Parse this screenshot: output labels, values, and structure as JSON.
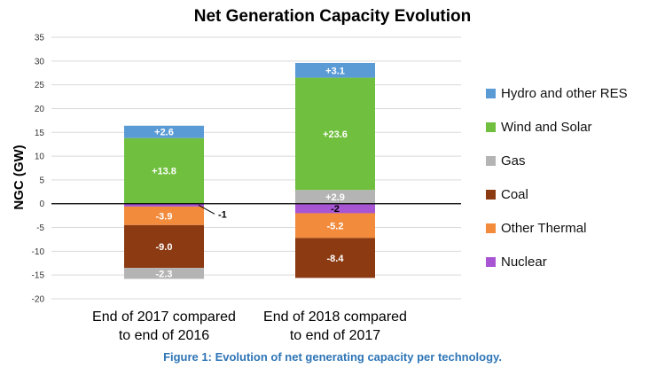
{
  "caption": "Figure 1: Evolution of net generating capacity per technology.",
  "chart_data": {
    "type": "bar",
    "stacked": true,
    "title": "Net Generation Capacity Evolution",
    "xlabel": "",
    "ylabel": "NGC (GW)",
    "ylim": [
      -20,
      35
    ],
    "yticks": [
      35,
      30,
      25,
      20,
      15,
      10,
      5,
      0,
      -5,
      -10,
      -15,
      -20
    ],
    "grid": true,
    "legend_position": "right",
    "categories": [
      [
        "End of 2017 compared",
        "to end of 2016"
      ],
      [
        "End of 2018 compared",
        "to end of 2017"
      ]
    ],
    "series": [
      {
        "name": "Hydro and other RES",
        "color": "#5b9bd5",
        "values": [
          2.6,
          3.1
        ],
        "labels": [
          "+2.6",
          "+3.1"
        ]
      },
      {
        "name": "Wind and Solar",
        "color": "#70bf3f",
        "values": [
          13.8,
          23.6
        ],
        "labels": [
          "+13.8",
          "+23.6"
        ]
      },
      {
        "name": "Gas",
        "color": "#b4b4b4",
        "values": [
          -2.3,
          2.9
        ],
        "labels": [
          "-2.3",
          "+2.9"
        ]
      },
      {
        "name": "Coal",
        "color": "#8b3a12",
        "values": [
          -9.0,
          -8.4
        ],
        "labels": [
          "-9.0",
          "-8.4"
        ]
      },
      {
        "name": "Other Thermal",
        "color": "#f28b3c",
        "values": [
          -3.9,
          -5.2
        ],
        "labels": [
          "-3.9",
          "-5.2"
        ]
      },
      {
        "name": "Nuclear",
        "color": "#a855d4",
        "values": [
          -0.6,
          -2.0
        ],
        "labels": [
          "-1",
          "-2"
        ]
      }
    ],
    "stack_order": [
      "Nuclear",
      "Other Thermal",
      "Coal",
      "Gas",
      "Wind and Solar",
      "Hydro and other RES"
    ]
  }
}
